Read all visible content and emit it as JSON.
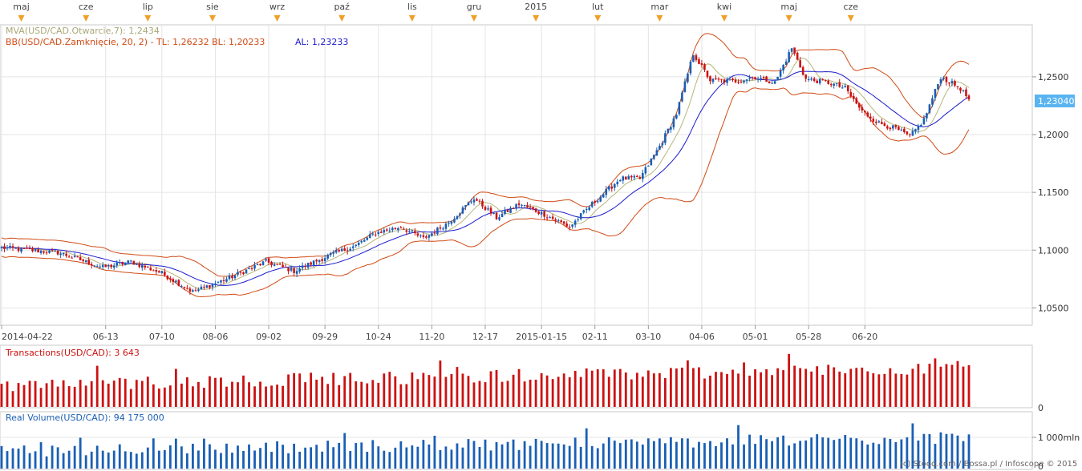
{
  "chart_data": [
    {
      "type": "candlestick",
      "panel": "price",
      "month_markers": [
        "maj",
        "cze",
        "lip",
        "sie",
        "wrz",
        "paź",
        "lis",
        "gru",
        "2015",
        "lut",
        "mar",
        "kwi",
        "maj",
        "cze"
      ],
      "x_ticks": [
        "2014-04-22",
        "06-13",
        "07-10",
        "08-06",
        "09-02",
        "09-29",
        "10-24",
        "11-20",
        "12-17",
        "2015-01-15",
        "02-11",
        "03-10",
        "04-06",
        "05-01",
        "05-28",
        "06-20"
      ],
      "y_ticks": [
        "1,0500",
        "1,1000",
        "1,1500",
        "1,2000",
        "1,2500"
      ],
      "ylim": [
        1.035,
        1.295
      ],
      "current_price_label": "1,23040",
      "current_price": 1.2304,
      "legend": {
        "mva_text": "MVA(USD/CAD.Otwarcie,7): 1,2434",
        "bb_text": "BB(USD/CAD.Zamknięcie, 20, 2) -  TL: 1,26232  BL: 1,20233",
        "al_text": "AL: 1,23233"
      },
      "close_anchors": [
        [
          0,
          1.102
        ],
        [
          20,
          1.098
        ],
        [
          36,
          1.085
        ],
        [
          46,
          1.09
        ],
        [
          57,
          1.08
        ],
        [
          68,
          1.064
        ],
        [
          80,
          1.075
        ],
        [
          94,
          1.09
        ],
        [
          104,
          1.082
        ],
        [
          116,
          1.095
        ],
        [
          126,
          1.104
        ],
        [
          133,
          1.115
        ],
        [
          142,
          1.12
        ],
        [
          150,
          1.11
        ],
        [
          159,
          1.124
        ],
        [
          168,
          1.145
        ],
        [
          176,
          1.128
        ],
        [
          184,
          1.14
        ],
        [
          193,
          1.131
        ],
        [
          202,
          1.12
        ],
        [
          210,
          1.14
        ],
        [
          220,
          1.162
        ],
        [
          227,
          1.162
        ],
        [
          234,
          1.19
        ],
        [
          240,
          1.218
        ],
        [
          246,
          1.27
        ],
        [
          252,
          1.247
        ],
        [
          260,
          1.246
        ],
        [
          268,
          1.25
        ],
        [
          275,
          1.245
        ],
        [
          281,
          1.275
        ],
        [
          286,
          1.248
        ],
        [
          294,
          1.245
        ],
        [
          300,
          1.24
        ],
        [
          306,
          1.22
        ],
        [
          312,
          1.21
        ],
        [
          318,
          1.205
        ],
        [
          323,
          1.198
        ],
        [
          328,
          1.213
        ],
        [
          334,
          1.25
        ],
        [
          341,
          1.24
        ],
        [
          344,
          1.2304
        ]
      ],
      "colors": {
        "up": "#1a5fb4",
        "down": "#cc1111",
        "mva": "#b5b57a",
        "bb": "#d04a14",
        "al": "#1a1acc"
      }
    },
    {
      "type": "bar",
      "panel": "transactions",
      "label": "Transactions(USD/CAD): 3 643",
      "color": "#cc1111",
      "y_tick": "0"
    },
    {
      "type": "bar",
      "panel": "volume",
      "label": "Real Volume(USD/CAD): 94 175 000",
      "color": "#1a5fb4",
      "y_ticks": [
        "0",
        "1 000mln"
      ]
    }
  ],
  "watermark": "(c) Stooq.com / Bossa.pl / Infoscope © 2015"
}
